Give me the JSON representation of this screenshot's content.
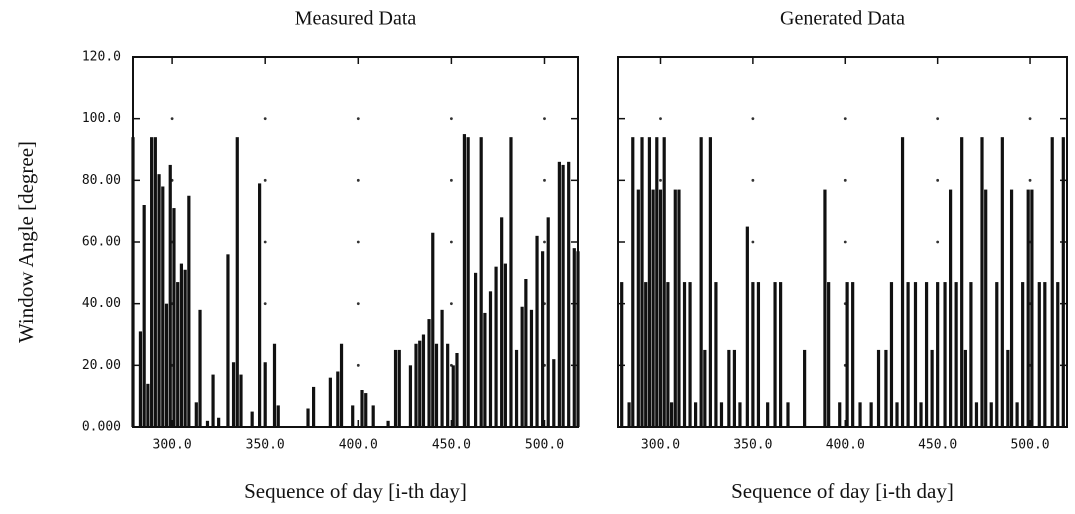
{
  "chart_data": [
    {
      "type": "bar",
      "title": "Measured Data",
      "x_label": "Sequence of day  [i-th day]",
      "y_label": "Window Angle  [degree]",
      "color": "#111111",
      "grid": "dots",
      "xlim": [
        279,
        518
      ],
      "ylim": [
        0,
        120
      ],
      "xticks": [
        {
          "value": 300,
          "label": "300.0"
        },
        {
          "value": 350,
          "label": "350.0"
        },
        {
          "value": 400,
          "label": "400.0"
        },
        {
          "value": 450,
          "label": "450.0"
        },
        {
          "value": 500,
          "label": "500.0"
        }
      ],
      "yticks": [
        {
          "value": 0,
          "label": "0.000"
        },
        {
          "value": 20,
          "label": "20.00"
        },
        {
          "value": 40,
          "label": "40.00"
        },
        {
          "value": 60,
          "label": "60.00"
        },
        {
          "value": 80,
          "label": "80.00"
        },
        {
          "value": 100,
          "label": "100.0"
        },
        {
          "value": 120,
          "label": "120.0"
        }
      ],
      "x": [
        279,
        283,
        285,
        287,
        289,
        291,
        293,
        295,
        297,
        299,
        301,
        303,
        305,
        307,
        309,
        313,
        315,
        319,
        322,
        325,
        330,
        333,
        335,
        337,
        343,
        347,
        350,
        355,
        357,
        373,
        376,
        385,
        389,
        391,
        397,
        402,
        404,
        408,
        416,
        420,
        422,
        428,
        431,
        433,
        435,
        438,
        440,
        442,
        445,
        448,
        451,
        453,
        457,
        459,
        463,
        466,
        468,
        471,
        474,
        477,
        479,
        482,
        485,
        488,
        490,
        493,
        496,
        499,
        502,
        505,
        508,
        510,
        513,
        516,
        518
      ],
      "values": [
        94,
        31,
        72,
        14,
        94,
        94,
        82,
        78,
        40,
        85,
        71,
        47,
        53,
        51,
        75,
        8,
        38,
        2,
        17,
        3,
        56,
        21,
        94,
        17,
        5,
        79,
        21,
        27,
        7,
        6,
        13,
        16,
        18,
        27,
        7,
        12,
        11,
        7,
        2,
        25,
        25,
        20,
        27,
        28,
        30,
        35,
        63,
        27,
        38,
        27,
        20,
        24,
        95,
        94,
        50,
        94,
        37,
        44,
        52,
        68,
        53,
        94,
        25,
        39,
        48,
        38,
        62,
        57,
        68,
        22,
        86,
        85,
        86,
        58,
        57
      ]
    },
    {
      "type": "bar",
      "title": "Generated Data",
      "x_label": "Sequence of day  [i-th day]",
      "color": "#111111",
      "grid": "dots",
      "xlim": [
        277,
        520
      ],
      "ylim": [
        0,
        120
      ],
      "xticks": [
        {
          "value": 300,
          "label": "300.0"
        },
        {
          "value": 350,
          "label": "350.0"
        },
        {
          "value": 400,
          "label": "400.0"
        },
        {
          "value": 450,
          "label": "450.0"
        },
        {
          "value": 500,
          "label": "500.0"
        }
      ],
      "yticks": [
        0,
        20,
        40,
        60,
        80,
        100,
        120
      ],
      "x": [
        279,
        283,
        285,
        288,
        290,
        292,
        294,
        296,
        298,
        300,
        302,
        304,
        306,
        308,
        310,
        313,
        316,
        319,
        322,
        324,
        327,
        330,
        333,
        337,
        340,
        343,
        347,
        350,
        353,
        358,
        362,
        365,
        369,
        378,
        389,
        391,
        397,
        401,
        404,
        408,
        414,
        418,
        422,
        425,
        428,
        431,
        434,
        438,
        441,
        444,
        447,
        450,
        454,
        457,
        460,
        463,
        465,
        468,
        471,
        474,
        476,
        479,
        482,
        485,
        488,
        490,
        493,
        496,
        499,
        501,
        505,
        508,
        512,
        515,
        518
      ],
      "values": [
        47,
        8,
        94,
        77,
        94,
        47,
        94,
        77,
        94,
        77,
        94,
        47,
        8,
        77,
        77,
        47,
        47,
        8,
        94,
        25,
        94,
        47,
        8,
        25,
        25,
        8,
        65,
        47,
        47,
        8,
        47,
        47,
        8,
        25,
        77,
        47,
        8,
        47,
        47,
        8,
        8,
        25,
        25,
        47,
        8,
        94,
        47,
        47,
        8,
        47,
        25,
        47,
        47,
        77,
        47,
        94,
        25,
        47,
        8,
        94,
        77,
        8,
        47,
        94,
        25,
        77,
        8,
        47,
        77,
        77,
        47,
        47,
        94,
        47,
        94
      ]
    }
  ]
}
